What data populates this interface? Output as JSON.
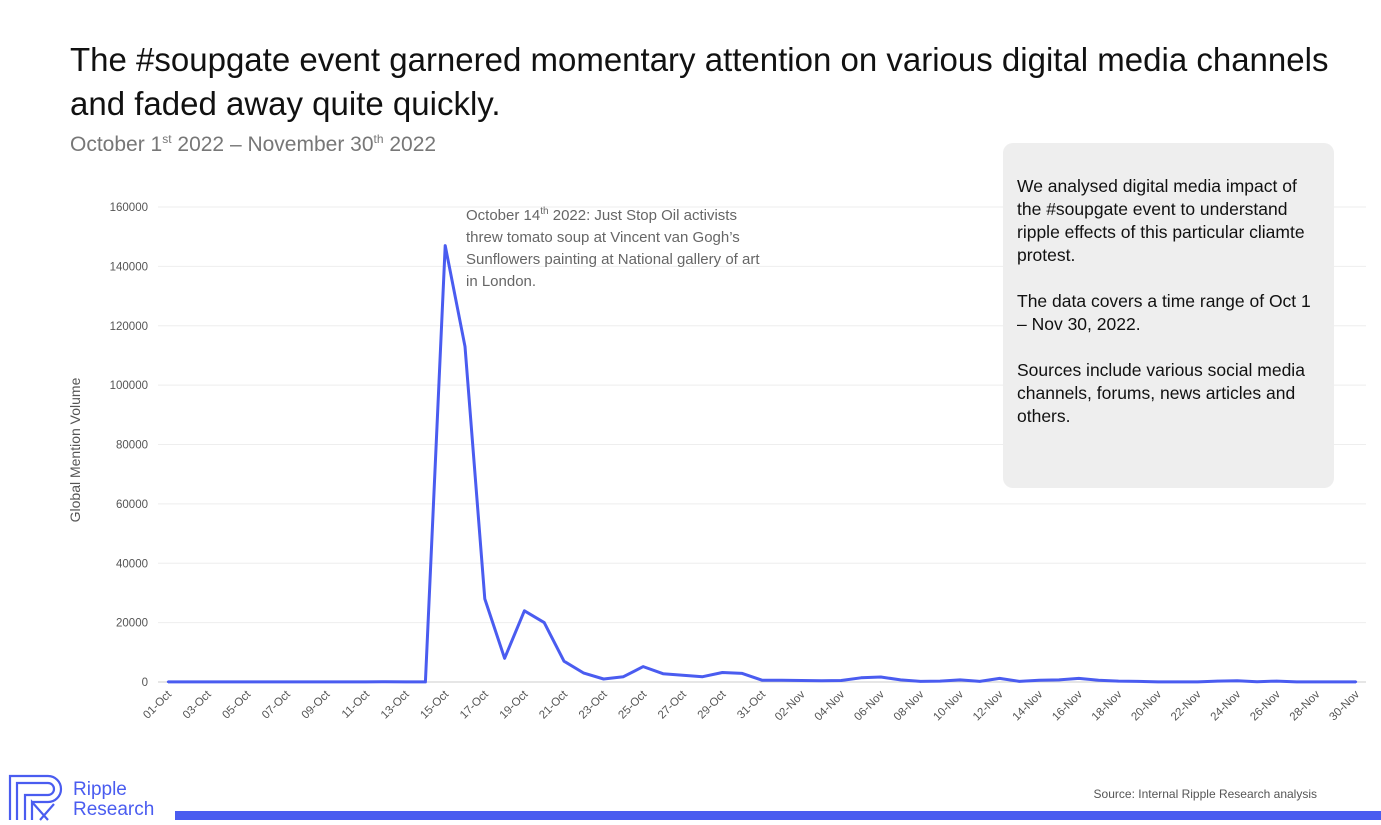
{
  "header": {
    "title": "The #soupgate event garnered momentary attention on various digital media channels and faded away quite quickly.",
    "subtitle_pre": "October 1",
    "subtitle_sup1": "st",
    "subtitle_mid": " 2022 – November 30",
    "subtitle_sup2": "th",
    "subtitle_post": " 2022"
  },
  "annotation": {
    "pre": "October 14",
    "sup": "th",
    "post": " 2022: Just Stop Oil activists threw tomato soup at Vincent van Gogh’s Sunflowers painting at National gallery of art in London."
  },
  "info_box": {
    "p1": "We analysed digital media impact of the #soupgate event to understand ripple effects of this particular cliamte protest.",
    "p2": "The data covers a time range of Oct 1 – Nov 30, 2022.",
    "p3": "Sources include various social media channels, forums, news articles and others."
  },
  "footer": {
    "logo_line1": "Ripple",
    "logo_line2": "Research",
    "source": "Source: Internal Ripple Research analysis"
  },
  "colors": {
    "line": "#4a5cf0",
    "brand": "#4a5cf0",
    "info_bg": "#eeeeee"
  },
  "chart_data": {
    "type": "line",
    "title": "",
    "xlabel": "",
    "ylabel": "Global Mention Volume",
    "ylim": [
      0,
      160000
    ],
    "yticks": [
      0,
      20000,
      40000,
      60000,
      80000,
      100000,
      120000,
      140000,
      160000
    ],
    "grid": true,
    "x": [
      "01-Oct",
      "02-Oct",
      "03-Oct",
      "04-Oct",
      "05-Oct",
      "06-Oct",
      "07-Oct",
      "08-Oct",
      "09-Oct",
      "10-Oct",
      "11-Oct",
      "12-Oct",
      "13-Oct",
      "14-Oct",
      "15-Oct",
      "16-Oct",
      "17-Oct",
      "18-Oct",
      "19-Oct",
      "20-Oct",
      "21-Oct",
      "22-Oct",
      "23-Oct",
      "24-Oct",
      "25-Oct",
      "26-Oct",
      "27-Oct",
      "28-Oct",
      "29-Oct",
      "30-Oct",
      "31-Oct",
      "01-Nov",
      "02-Nov",
      "03-Nov",
      "04-Nov",
      "05-Nov",
      "06-Nov",
      "07-Nov",
      "08-Nov",
      "09-Nov",
      "10-Nov",
      "11-Nov",
      "12-Nov",
      "13-Nov",
      "14-Nov",
      "15-Nov",
      "16-Nov",
      "17-Nov",
      "18-Nov",
      "19-Nov",
      "20-Nov",
      "21-Nov",
      "22-Nov",
      "23-Nov",
      "24-Nov",
      "25-Nov",
      "26-Nov",
      "27-Nov",
      "28-Nov",
      "29-Nov",
      "30-Nov"
    ],
    "xtick_labels": [
      "01-Oct",
      "03-Oct",
      "05-Oct",
      "07-Oct",
      "09-Oct",
      "11-Oct",
      "13-Oct",
      "15-Oct",
      "17-Oct",
      "19-Oct",
      "21-Oct",
      "23-Oct",
      "25-Oct",
      "27-Oct",
      "29-Oct",
      "31-Oct",
      "02-Nov",
      "04-Nov",
      "06-Nov",
      "08-Nov",
      "10-Nov",
      "12-Nov",
      "14-Nov",
      "16-Nov",
      "18-Nov",
      "20-Nov",
      "22-Nov",
      "24-Nov",
      "26-Nov",
      "28-Nov",
      "30-Nov"
    ],
    "series": [
      {
        "values": [
          50,
          50,
          50,
          50,
          50,
          50,
          50,
          50,
          50,
          50,
          50,
          100,
          50,
          50,
          147000,
          113000,
          28000,
          8000,
          24000,
          20000,
          7000,
          3000,
          1000,
          1800,
          5200,
          2800,
          2300,
          1800,
          3200,
          2900,
          600,
          600,
          500,
          400,
          500,
          1400,
          1700,
          700,
          200,
          300,
          700,
          200,
          1200,
          200,
          600,
          700,
          1200,
          600,
          300,
          200,
          50,
          50,
          50,
          300,
          400,
          100,
          300,
          50,
          50,
          50,
          50
        ]
      }
    ]
  }
}
